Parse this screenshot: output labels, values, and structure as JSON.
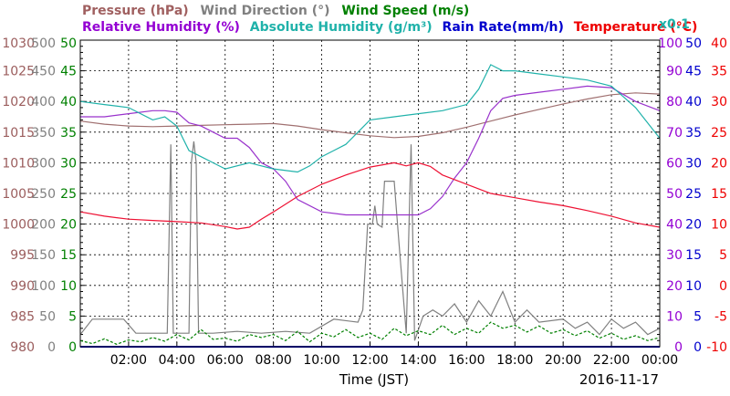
{
  "chart_data": {
    "type": "line",
    "legend": {
      "pressure": "Pressure (hPa)",
      "wind_direction": "Wind Direction (°)",
      "wind_speed": "Wind Speed (m/s)",
      "relative_humidity": "Relative Humidity (%)",
      "absolute_humidity": "Absolute Humidity (g/m³)",
      "rain_rate": "Rain Rate(mm/h)",
      "temperature": "Temperature (°C)",
      "multiplier": "x0.1"
    },
    "xlabel": "Time (JST)",
    "date": "2016-11-17",
    "x_range": [
      "00:00",
      "24:00"
    ],
    "x_ticks": [
      "02:00",
      "04:00",
      "06:00",
      "08:00",
      "10:00",
      "12:00",
      "14:00",
      "16:00",
      "18:00",
      "20:00",
      "22:00",
      "00:00"
    ],
    "grid": true,
    "axes": {
      "pressure": {
        "ticks": [
          "980",
          "985",
          "990",
          "995",
          "1000",
          "1005",
          "1010",
          "1015",
          "1020",
          "1025",
          "1030"
        ],
        "range": [
          980,
          1030
        ],
        "color": "#9b5d5d"
      },
      "wind_direction": {
        "ticks": [
          "0",
          "50",
          "100",
          "150",
          "200",
          "250",
          "300",
          "350",
          "400",
          "450",
          "500"
        ],
        "range": [
          0,
          500
        ],
        "color": "#808080"
      },
      "wind_speed": {
        "ticks": [
          "0",
          "5",
          "10",
          "15",
          "20",
          "25",
          "30",
          "35",
          "40",
          "45",
          "50"
        ],
        "range": [
          0,
          50
        ],
        "color": "#008000"
      },
      "relative_humidity": {
        "ticks": [
          "0",
          "10",
          "20",
          "30",
          "40",
          "50",
          "60",
          "70",
          "80",
          "90",
          "100"
        ],
        "range": [
          0,
          100
        ],
        "color": "#9400d3"
      },
      "rain_rate": {
        "ticks": [
          "0",
          "5",
          "10",
          "15",
          "20",
          "25",
          "30",
          "35",
          "40",
          "45",
          "50"
        ],
        "range": [
          0,
          50
        ],
        "color": "#0000cd"
      },
      "temperature": {
        "ticks": [
          "-10",
          "-5",
          "0",
          "5",
          "10",
          "15",
          "20",
          "25",
          "30",
          "35",
          "40"
        ],
        "range": [
          -10,
          40
        ],
        "color": "#ee0000"
      }
    },
    "series": [
      {
        "key": "pressure",
        "axis": "pressure",
        "color": "#a07070",
        "values": [
          [
            0,
            1016.8
          ],
          [
            1,
            1016.3
          ],
          [
            2,
            1016.0
          ],
          [
            3,
            1015.9
          ],
          [
            4,
            1016.0
          ],
          [
            5,
            1016.1
          ],
          [
            6,
            1016.2
          ],
          [
            7,
            1016.3
          ],
          [
            8,
            1016.4
          ],
          [
            9,
            1016.0
          ],
          [
            10,
            1015.4
          ],
          [
            11,
            1014.9
          ],
          [
            12,
            1014.4
          ],
          [
            13,
            1014.1
          ],
          [
            14,
            1014.3
          ],
          [
            15,
            1014.9
          ],
          [
            16,
            1015.8
          ],
          [
            17,
            1016.8
          ],
          [
            18,
            1017.8
          ],
          [
            19,
            1018.7
          ],
          [
            20,
            1019.6
          ],
          [
            21,
            1020.4
          ],
          [
            22,
            1021.1
          ],
          [
            23,
            1021.4
          ],
          [
            24,
            1021.2
          ]
        ]
      },
      {
        "key": "wind_direction",
        "axis": "wind_direction",
        "color": "#808080",
        "values": [
          [
            0,
            20
          ],
          [
            0.5,
            45
          ],
          [
            1.8,
            45
          ],
          [
            2.3,
            22
          ],
          [
            3.6,
            22
          ],
          [
            3.75,
            330
          ],
          [
            3.85,
            22
          ],
          [
            4.5,
            22
          ],
          [
            4.6,
            300
          ],
          [
            4.7,
            335
          ],
          [
            4.8,
            300
          ],
          [
            4.9,
            22
          ],
          [
            5.5,
            22
          ],
          [
            6.5,
            25
          ],
          [
            7.5,
            22
          ],
          [
            8.5,
            25
          ],
          [
            9.5,
            22
          ],
          [
            10.5,
            45
          ],
          [
            11.5,
            40
          ],
          [
            11.7,
            60
          ],
          [
            11.9,
            200
          ],
          [
            12.1,
            200
          ],
          [
            12.2,
            230
          ],
          [
            12.3,
            200
          ],
          [
            12.5,
            195
          ],
          [
            12.6,
            270
          ],
          [
            13.0,
            270
          ],
          [
            13.2,
            170
          ],
          [
            13.5,
            22
          ],
          [
            13.7,
            330
          ],
          [
            13.85,
            10
          ],
          [
            14.2,
            50
          ],
          [
            14.6,
            60
          ],
          [
            15.0,
            50
          ],
          [
            15.5,
            70
          ],
          [
            16.0,
            40
          ],
          [
            16.5,
            75
          ],
          [
            17.0,
            50
          ],
          [
            17.5,
            90
          ],
          [
            18.0,
            40
          ],
          [
            18.5,
            60
          ],
          [
            19.0,
            40
          ],
          [
            20.0,
            45
          ],
          [
            20.5,
            30
          ],
          [
            21.0,
            40
          ],
          [
            21.5,
            20
          ],
          [
            22.0,
            45
          ],
          [
            22.5,
            30
          ],
          [
            23.0,
            40
          ],
          [
            23.5,
            20
          ],
          [
            24,
            30
          ]
        ]
      },
      {
        "key": "wind_speed",
        "axis": "wind_speed",
        "color": "#008000",
        "dashed": true,
        "values": [
          [
            0,
            1
          ],
          [
            0.5,
            0.5
          ],
          [
            1,
            1.3
          ],
          [
            1.5,
            0.4
          ],
          [
            2,
            1.1
          ],
          [
            2.5,
            0.8
          ],
          [
            3,
            1.5
          ],
          [
            3.5,
            0.9
          ],
          [
            4,
            2
          ],
          [
            4.5,
            1.1
          ],
          [
            5,
            2.8
          ],
          [
            5.5,
            1.2
          ],
          [
            6,
            1.4
          ],
          [
            6.5,
            0.9
          ],
          [
            7,
            2
          ],
          [
            7.5,
            1.5
          ],
          [
            8,
            2
          ],
          [
            8.5,
            1
          ],
          [
            9,
            2.5
          ],
          [
            9.5,
            0.8
          ],
          [
            10,
            2.2
          ],
          [
            10.5,
            1.6
          ],
          [
            11,
            2.8
          ],
          [
            11.5,
            1.5
          ],
          [
            12,
            2.2
          ],
          [
            12.5,
            1.2
          ],
          [
            13,
            3
          ],
          [
            13.5,
            1.8
          ],
          [
            14,
            2.6
          ],
          [
            14.5,
            2
          ],
          [
            15,
            3.5
          ],
          [
            15.5,
            2
          ],
          [
            16,
            3
          ],
          [
            16.5,
            2.2
          ],
          [
            17,
            4
          ],
          [
            17.5,
            3
          ],
          [
            18,
            3.5
          ],
          [
            18.5,
            2.4
          ],
          [
            19,
            3.4
          ],
          [
            19.5,
            2.2
          ],
          [
            20,
            2.8
          ],
          [
            20.5,
            1.8
          ],
          [
            21,
            2.6
          ],
          [
            21.5,
            1.4
          ],
          [
            22,
            2.2
          ],
          [
            22.5,
            1.2
          ],
          [
            23,
            1.8
          ],
          [
            23.5,
            1
          ],
          [
            24,
            1.5
          ]
        ]
      },
      {
        "key": "relative_humidity",
        "axis": "relative_humidity",
        "color": "#9932cc",
        "values": [
          [
            0,
            75
          ],
          [
            1,
            75
          ],
          [
            2,
            76
          ],
          [
            3,
            77
          ],
          [
            3.5,
            77
          ],
          [
            4,
            76.5
          ],
          [
            4.5,
            73
          ],
          [
            5,
            72
          ],
          [
            5.5,
            70
          ],
          [
            6,
            68
          ],
          [
            6.5,
            68
          ],
          [
            7,
            65
          ],
          [
            7.5,
            60
          ],
          [
            8,
            58
          ],
          [
            8.5,
            54
          ],
          [
            9,
            48
          ],
          [
            10,
            44
          ],
          [
            11,
            43
          ],
          [
            12,
            43
          ],
          [
            13,
            43
          ],
          [
            14,
            43
          ],
          [
            14.5,
            45
          ],
          [
            15,
            49
          ],
          [
            15.5,
            55
          ],
          [
            16,
            60
          ],
          [
            16.5,
            68
          ],
          [
            17,
            77
          ],
          [
            17.5,
            81
          ],
          [
            18,
            82
          ],
          [
            19,
            83
          ],
          [
            20,
            84
          ],
          [
            21,
            85
          ],
          [
            22,
            84.5
          ],
          [
            23,
            80
          ],
          [
            24,
            77
          ]
        ]
      },
      {
        "key": "absolute_humidity",
        "axis": "wind_speed",
        "color": "#20b2aa",
        "values": [
          [
            0,
            40
          ],
          [
            1,
            39.5
          ],
          [
            2,
            39
          ],
          [
            3,
            37
          ],
          [
            3.5,
            37.5
          ],
          [
            4,
            36
          ],
          [
            4.5,
            32
          ],
          [
            5,
            31
          ],
          [
            5.5,
            30
          ],
          [
            6,
            29
          ],
          [
            7,
            30
          ],
          [
            7.5,
            29.5
          ],
          [
            8,
            29
          ],
          [
            9,
            28.5
          ],
          [
            9.5,
            29.5
          ],
          [
            10,
            31
          ],
          [
            10.5,
            32
          ],
          [
            11,
            33
          ],
          [
            11.5,
            35
          ],
          [
            12,
            37
          ],
          [
            13,
            37.5
          ],
          [
            14,
            38
          ],
          [
            15,
            38.5
          ],
          [
            16,
            39.5
          ],
          [
            16.5,
            42
          ],
          [
            17,
            46
          ],
          [
            17.5,
            45
          ],
          [
            18,
            45
          ],
          [
            19,
            44.5
          ],
          [
            20,
            44
          ],
          [
            21,
            43.5
          ],
          [
            22,
            42.5
          ],
          [
            23,
            39
          ],
          [
            24,
            34
          ]
        ]
      },
      {
        "key": "rain_rate",
        "axis": "rain_rate",
        "color": "#0000cd",
        "values": [
          [
            0,
            0
          ],
          [
            24,
            0
          ]
        ]
      },
      {
        "key": "temperature",
        "axis": "temperature",
        "color": "#ee1133",
        "values": [
          [
            0,
            12
          ],
          [
            1,
            11.3
          ],
          [
            2,
            10.8
          ],
          [
            3,
            10.6
          ],
          [
            4,
            10.4
          ],
          [
            5,
            10.2
          ],
          [
            6,
            9.6
          ],
          [
            6.5,
            9.2
          ],
          [
            7,
            9.5
          ],
          [
            7.5,
            10.8
          ],
          [
            8,
            12
          ],
          [
            9,
            14.5
          ],
          [
            10,
            16.5
          ],
          [
            11,
            18
          ],
          [
            12,
            19.3
          ],
          [
            13,
            20
          ],
          [
            13.5,
            19.5
          ],
          [
            14,
            20
          ],
          [
            14.5,
            19.4
          ],
          [
            15,
            18
          ],
          [
            16,
            16.5
          ],
          [
            17,
            15
          ],
          [
            18,
            14.3
          ],
          [
            19,
            13.6
          ],
          [
            20,
            13
          ],
          [
            21,
            12.2
          ],
          [
            22,
            11.3
          ],
          [
            23,
            10.2
          ],
          [
            24,
            9.5
          ]
        ]
      }
    ]
  }
}
